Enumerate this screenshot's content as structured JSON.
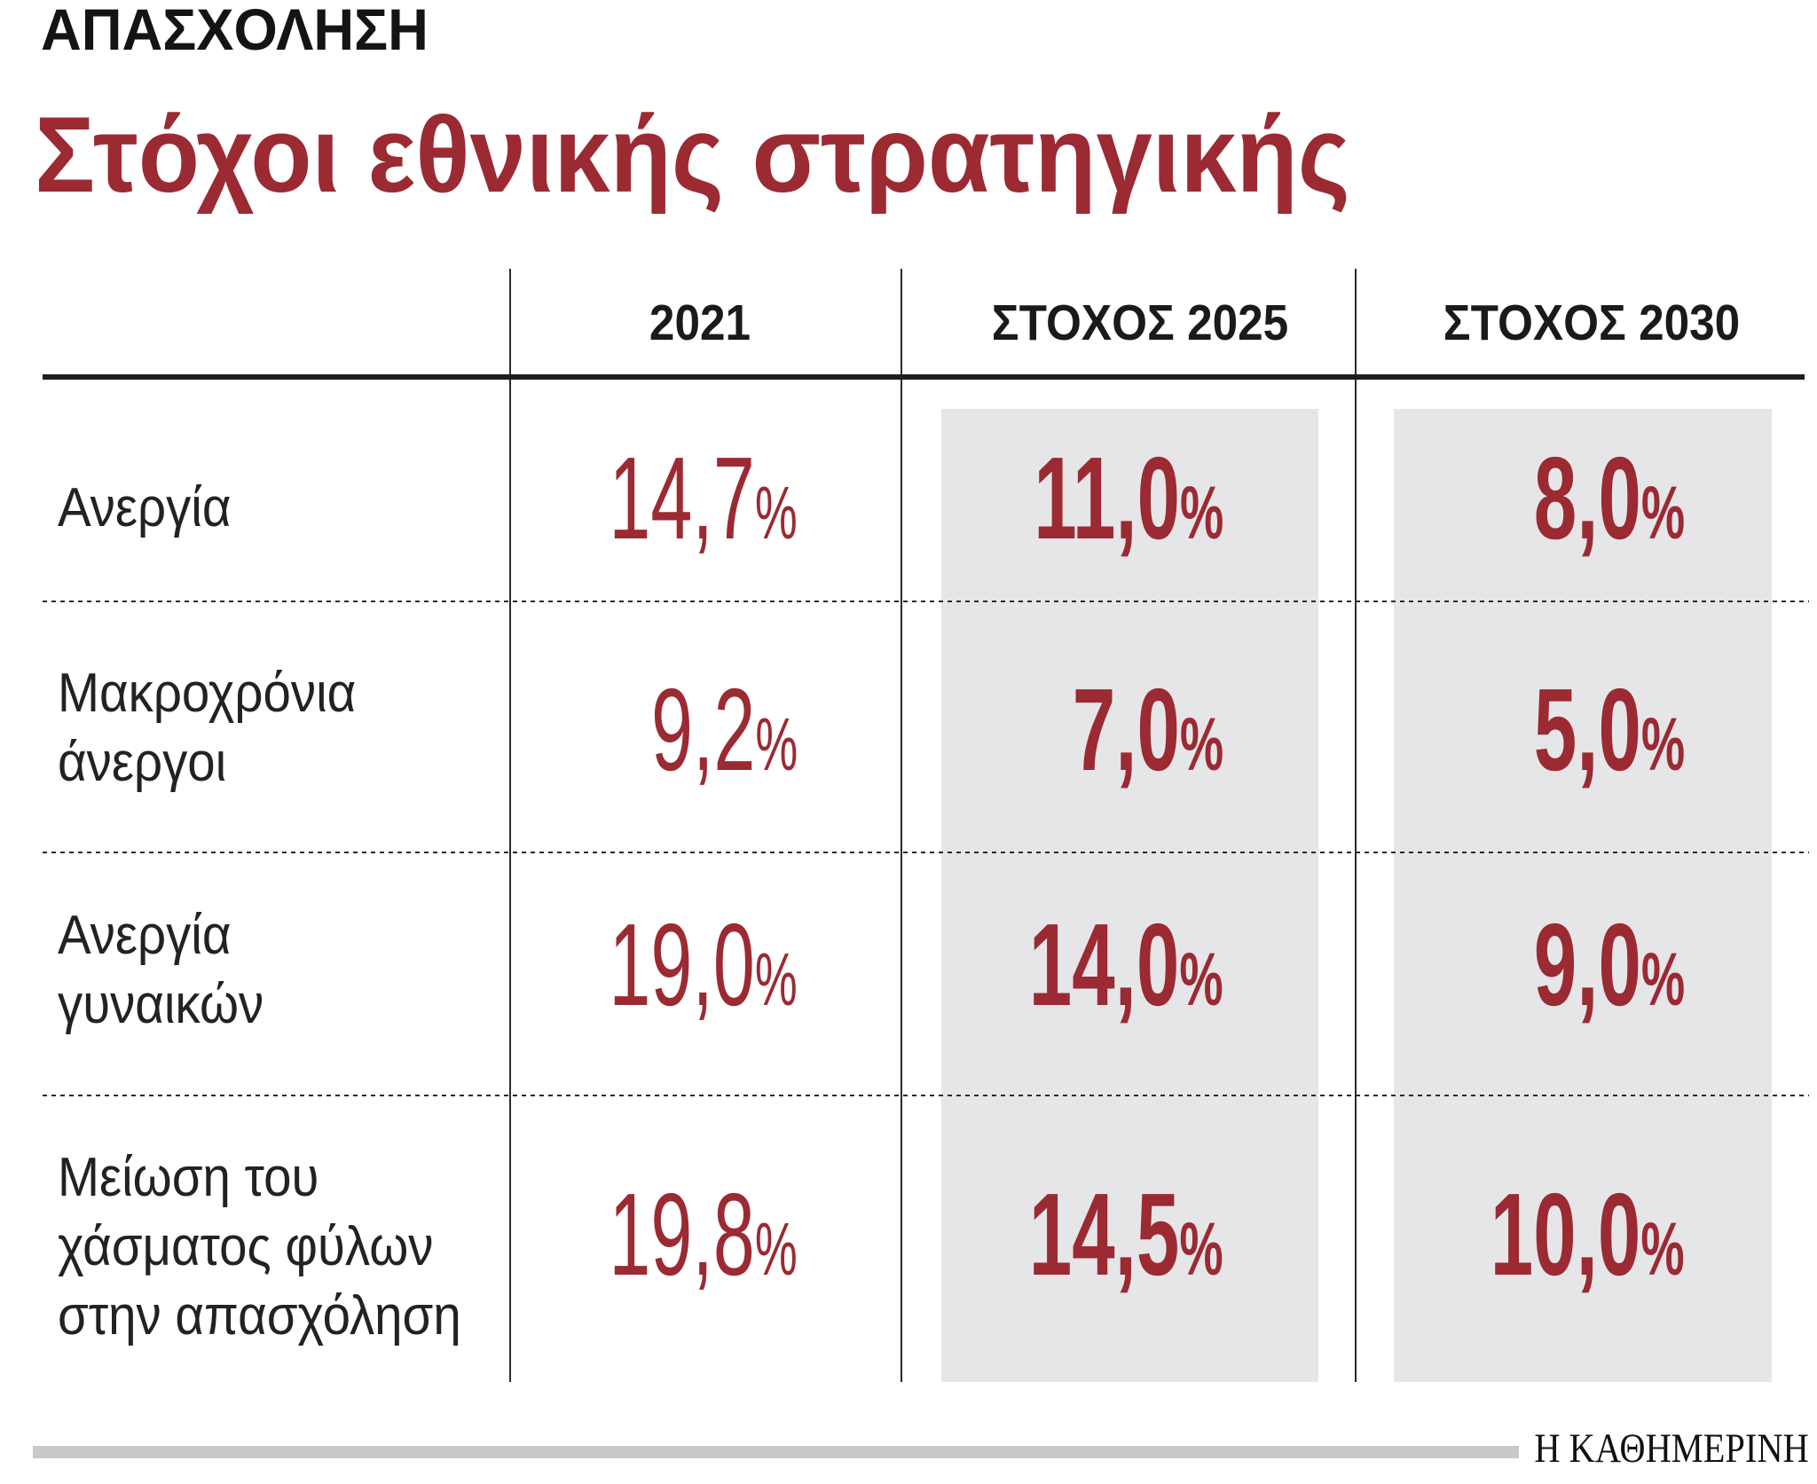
{
  "chart_data": {
    "type": "table",
    "kicker": "ΑΠΑΣΧΟΛΗΣΗ",
    "title": "Στόχοι εθνικής στρατηγικής",
    "columns": [
      "2021",
      "ΣΤΟΧΟΣ 2025",
      "ΣΤΟΧΟΣ 2030"
    ],
    "unit": "%",
    "rows": [
      {
        "label": [
          "Ανεργία"
        ],
        "values": [
          "14,7",
          "11,0",
          "8,0"
        ]
      },
      {
        "label": [
          "Μακροχρόνια",
          "άνεργοι"
        ],
        "values": [
          "9,2",
          "7,0",
          "5,0"
        ]
      },
      {
        "label": [
          "Ανεργία",
          "γυναικών"
        ],
        "values": [
          "19,0",
          "14,0",
          "9,0"
        ]
      },
      {
        "label": [
          "Μείωση του",
          "χάσματος φύλων",
          "στην απασχόληση"
        ],
        "values": [
          "19,8",
          "14,5",
          "10,0"
        ]
      }
    ]
  },
  "source": "Η ΚΑΘΗΜΕΡΙΝΗ",
  "colors": {
    "accent": "#9b2a33",
    "highlight_column": "#e6e6e9",
    "text": "#1f1f1f",
    "footer_bar": "#c9c9c9"
  }
}
